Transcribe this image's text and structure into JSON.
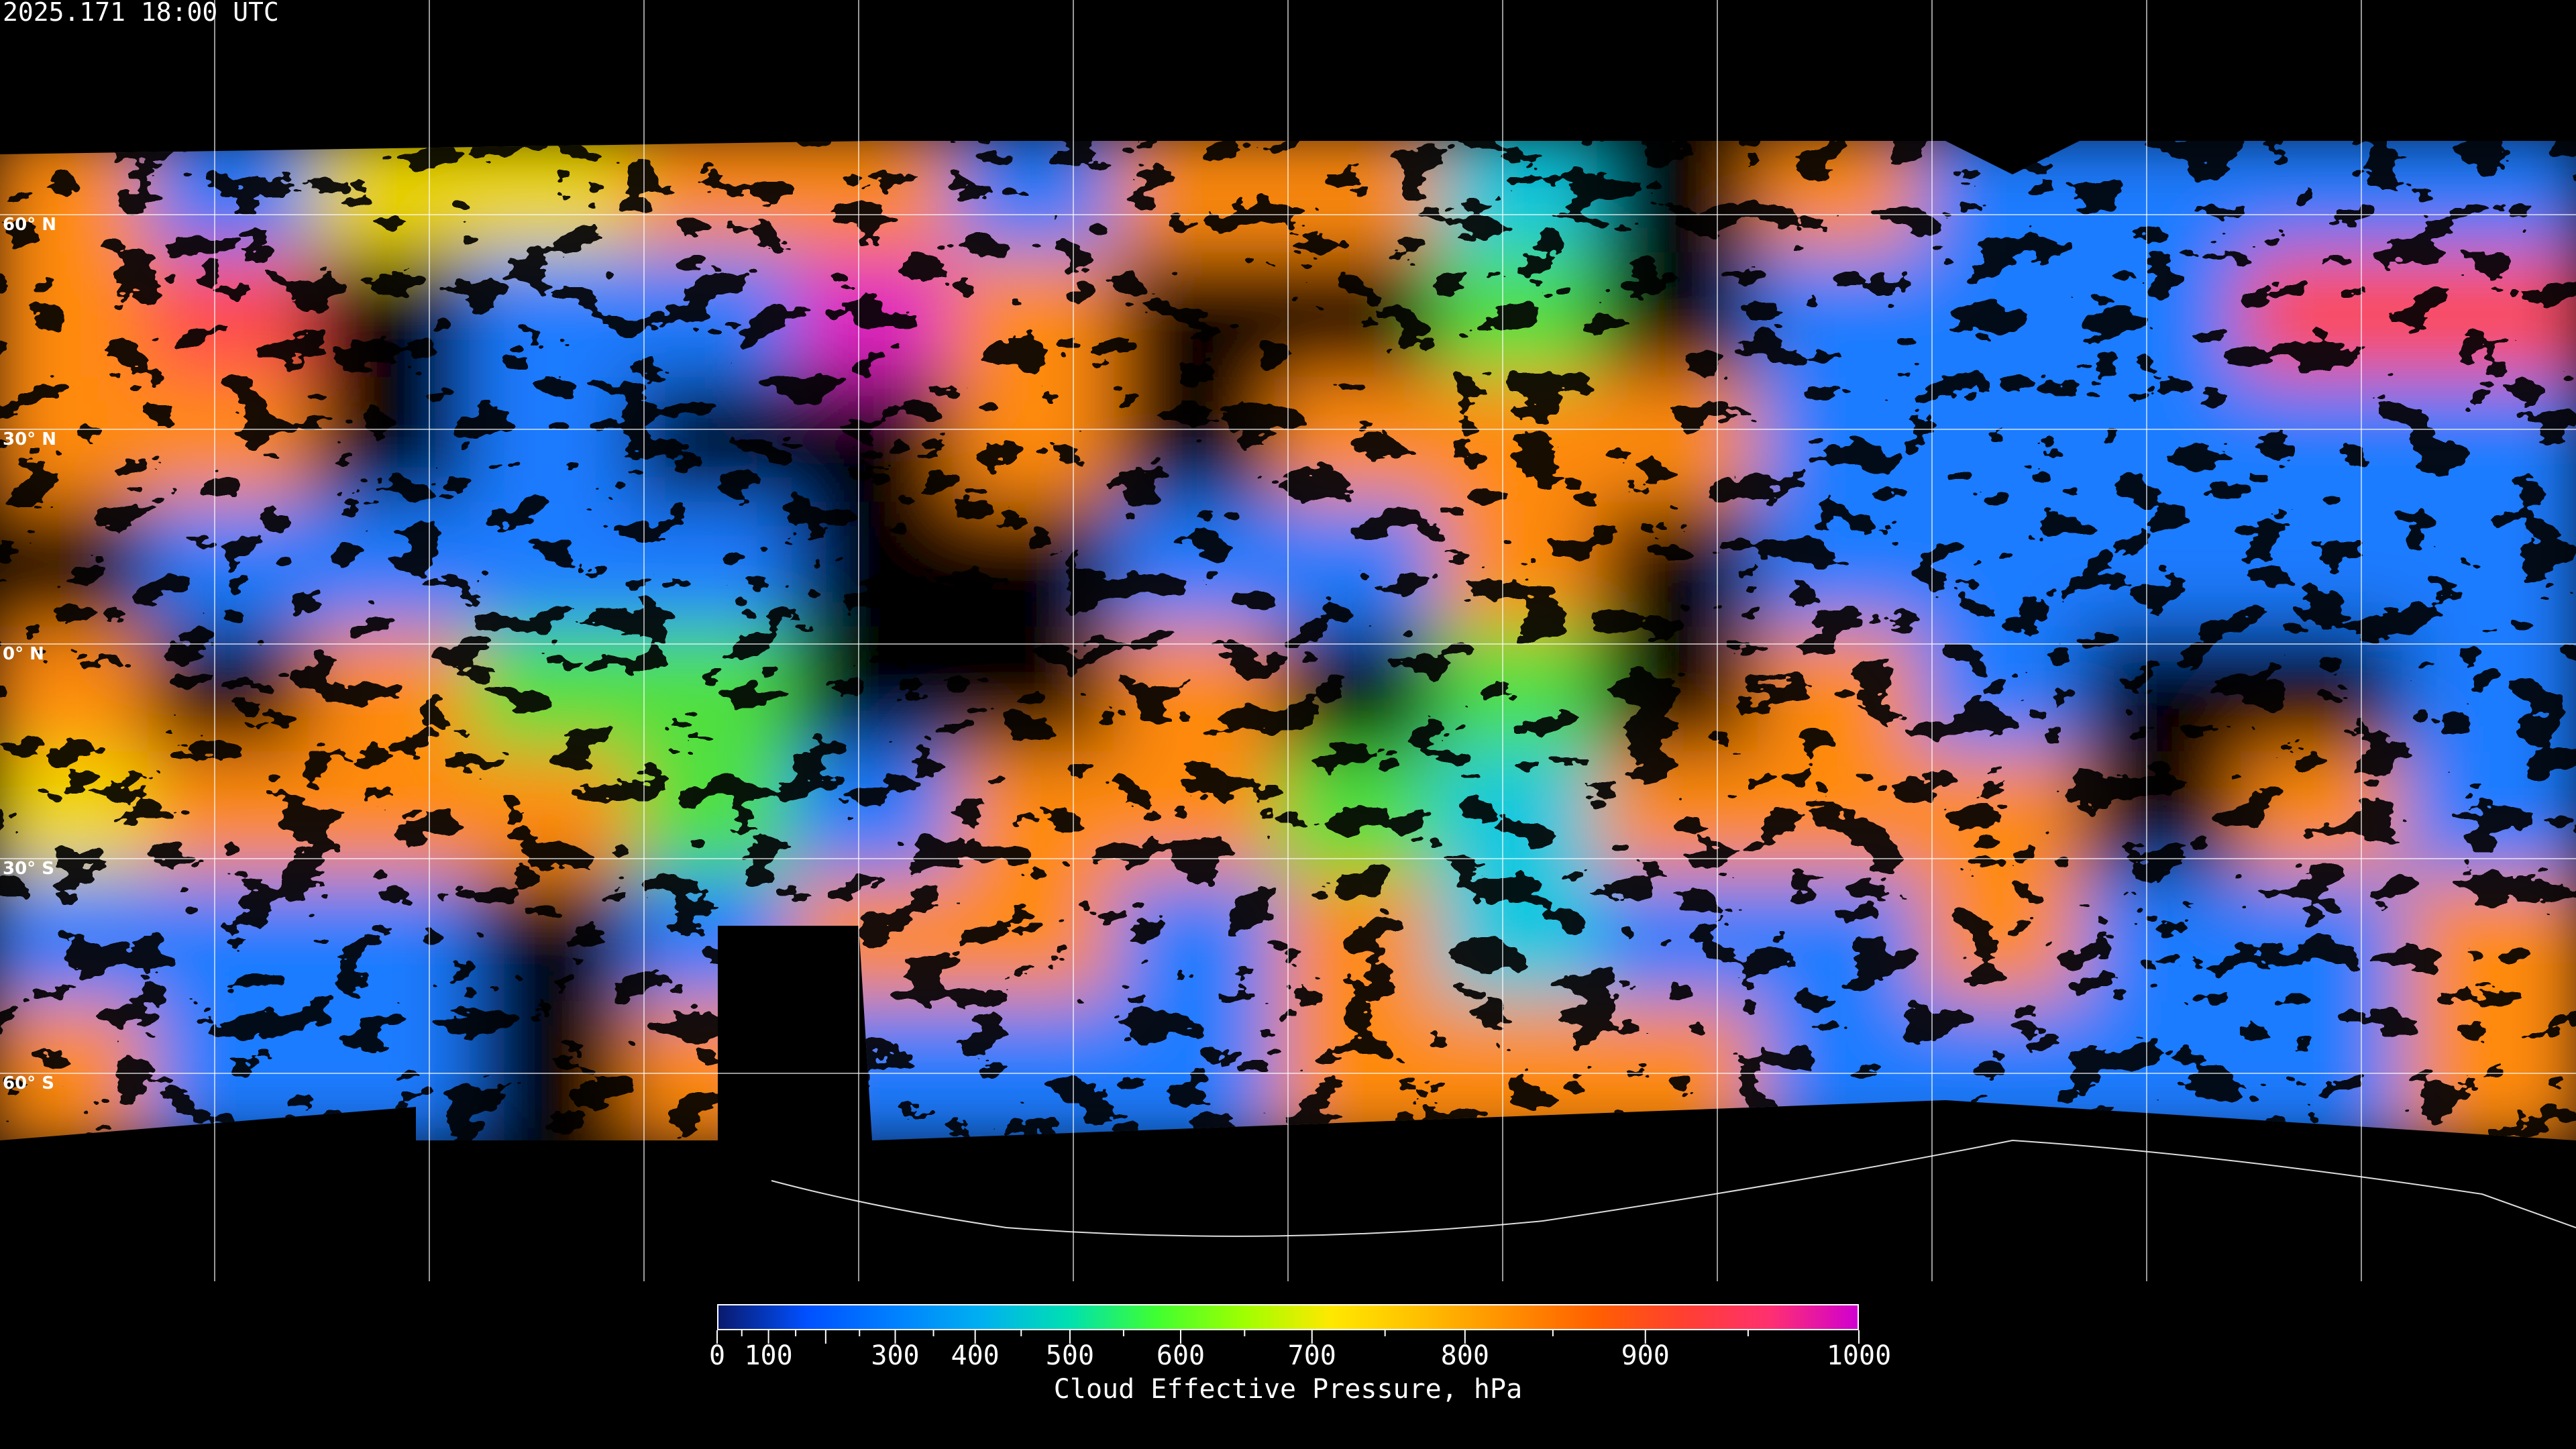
{
  "header": {
    "timestamp": "2025.171 18:00 UTC"
  },
  "map": {
    "latitude_labels": [
      "60° N",
      "30° N",
      "0° N",
      "30° S",
      "60° S"
    ],
    "gridline_color": "#ffffff",
    "background": "#000000"
  },
  "colorbar": {
    "title": "Cloud Effective Pressure, hPa",
    "range": [
      0,
      1000
    ],
    "tick_labels": [
      {
        "value": 0,
        "text": "0"
      },
      {
        "value": 100,
        "text": "100"
      },
      {
        "value": 300,
        "text": "300"
      },
      {
        "value": 400,
        "text": "400"
      },
      {
        "value": 500,
        "text": "500"
      },
      {
        "value": 600,
        "text": "600"
      },
      {
        "value": 700,
        "text": "700"
      },
      {
        "value": 800,
        "text": "800"
      },
      {
        "value": 900,
        "text": "900"
      },
      {
        "value": 1000,
        "text": "1000"
      }
    ],
    "colors": [
      "#0a1a6e",
      "#0050ff",
      "#0080ff",
      "#00b0f0",
      "#00e0b0",
      "#40ff30",
      "#a0ff00",
      "#ffe800",
      "#ffc000",
      "#ff9000",
      "#ff6000",
      "#ff4030",
      "#ff3070",
      "#d000d0"
    ]
  }
}
